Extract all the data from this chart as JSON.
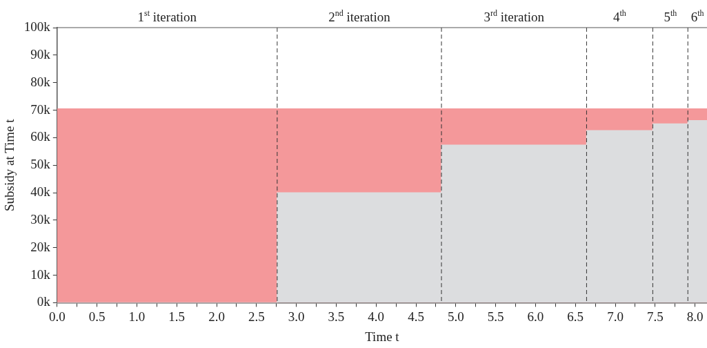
{
  "chart_data": {
    "type": "step",
    "xlabel": "Time t",
    "ylabel": "Subsidy at Time t",
    "xlim": [
      0,
      8.15
    ],
    "xticks": [
      {
        "value": 0,
        "label": "0.0"
      },
      {
        "value": 0.25,
        "label": null
      },
      {
        "value": 0.5,
        "label": "0.5"
      },
      {
        "value": 0.75,
        "label": null
      },
      {
        "value": 1,
        "label": "1.0"
      },
      {
        "value": 1.25,
        "label": null
      },
      {
        "value": 1.5,
        "label": "1.5"
      },
      {
        "value": 1.75,
        "label": null
      },
      {
        "value": 2,
        "label": "2.0"
      },
      {
        "value": 2.25,
        "label": null
      },
      {
        "value": 2.5,
        "label": "2.5"
      },
      {
        "value": 2.75,
        "label": null
      },
      {
        "value": 3,
        "label": "3.0"
      },
      {
        "value": 3.25,
        "label": null
      },
      {
        "value": 3.5,
        "label": "3.5"
      },
      {
        "value": 3.75,
        "label": null
      },
      {
        "value": 4,
        "label": "4.0"
      },
      {
        "value": 4.25,
        "label": null
      },
      {
        "value": 4.5,
        "label": "4.5"
      },
      {
        "value": 4.75,
        "label": null
      },
      {
        "value": 5,
        "label": "5.0"
      },
      {
        "value": 5.25,
        "label": null
      },
      {
        "value": 5.5,
        "label": "5.5"
      },
      {
        "value": 5.75,
        "label": null
      },
      {
        "value": 6,
        "label": "6.0"
      },
      {
        "value": 6.25,
        "label": null
      },
      {
        "value": 6.5,
        "label": "6.5"
      },
      {
        "value": 6.75,
        "label": null
      },
      {
        "value": 7,
        "label": "7.0"
      },
      {
        "value": 7.25,
        "label": null
      },
      {
        "value": 7.5,
        "label": "7.5"
      },
      {
        "value": 7.75,
        "label": null
      },
      {
        "value": 8,
        "label": "8.0"
      }
    ],
    "ylim": [
      0,
      100000
    ],
    "yticks": [
      {
        "value": 0,
        "label": "0k"
      },
      {
        "value": 10000,
        "label": "10k"
      },
      {
        "value": 20000,
        "label": "20k"
      },
      {
        "value": 30000,
        "label": "30k"
      },
      {
        "value": 40000,
        "label": "40k"
      },
      {
        "value": 50000,
        "label": "50k"
      },
      {
        "value": 60000,
        "label": "60k"
      },
      {
        "value": 70000,
        "label": "70k"
      },
      {
        "value": 80000,
        "label": "80k"
      },
      {
        "value": 90000,
        "label": "90k"
      },
      {
        "value": 100000,
        "label": "100k"
      }
    ],
    "grid": false,
    "series": [
      {
        "type": "area",
        "color": "#f4989a",
        "x": [
          0,
          8.15
        ],
        "values": [
          70500,
          70500
        ]
      },
      {
        "type": "area",
        "color": "#dcdddf",
        "x": [
          0,
          2.76,
          4.82,
          6.64,
          7.47,
          7.91,
          8.15
        ],
        "values": [
          0,
          40000,
          57300,
          62600,
          65000,
          66200,
          66200
        ]
      }
    ],
    "ref_lines": [
      {
        "axis": "x",
        "value": 2.76,
        "line_style": "dashed",
        "color": "#333333"
      },
      {
        "axis": "x",
        "value": 4.82,
        "line_style": "dashed",
        "color": "#333333"
      },
      {
        "axis": "x",
        "value": 6.64,
        "line_style": "dashed",
        "color": "#333333"
      },
      {
        "axis": "x",
        "value": 7.47,
        "line_style": "dashed",
        "color": "#333333"
      },
      {
        "axis": "x",
        "value": 7.91,
        "line_style": "dashed",
        "color": "#333333"
      }
    ],
    "annotations": [
      "1$^{st}$ iteration",
      "2$^{nd}$ iteration",
      "3$^{rd}$ iteration",
      "4$^{th}$",
      "5$^{th}$",
      "6$^{th}$"
    ]
  }
}
